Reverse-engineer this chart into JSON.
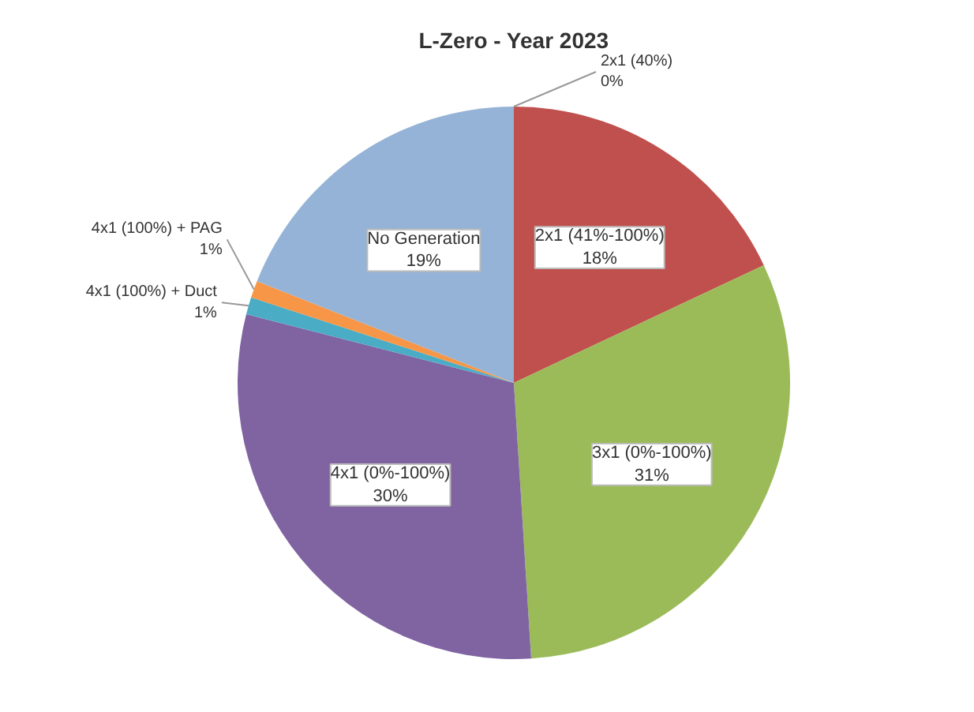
{
  "chart_data": {
    "type": "pie",
    "title": "L-Zero - Year 2023",
    "categories": [
      "2x1 (40%)",
      "2x1 (41%-100%)",
      "3x1 (0%-100%)",
      "4x1 (0%-100%)",
      "4x1 (100%) + Duct",
      "4x1 (100%) + PAG",
      "No Generation"
    ],
    "values": [
      0,
      18,
      31,
      30,
      1,
      1,
      19
    ],
    "value_labels": [
      "0%",
      "18%",
      "31%",
      "30%",
      "1%",
      "1%",
      "19%"
    ],
    "colors": [
      "#4f81bd",
      "#c0504d",
      "#9bbb59",
      "#8064a2",
      "#4bacc6",
      "#f79646",
      "#95b3d7"
    ]
  }
}
